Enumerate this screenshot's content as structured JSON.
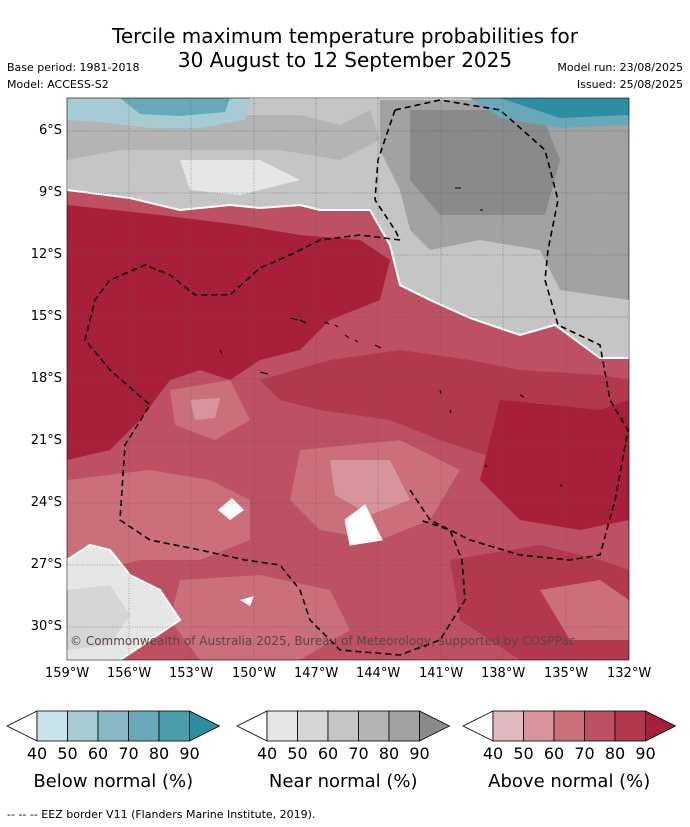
{
  "title_line1": "Tercile maximum temperature probabilities for",
  "title_line2": "30 August to 12 September 2025",
  "base_period": "Base period: 1981-2018",
  "model": "Model: ACCESS-S2",
  "model_run": "Model run: 23/08/2025",
  "issued": "Issued: 25/08/2025",
  "copyright": "© Commonwealth of Australia 2025, Bureau of Meteorology, supported by COSPPac",
  "footer": "--  --  -- EEZ border V11 (Flanders Marine Institute, 2019).",
  "lat_labels": [
    "6°S",
    "9°S",
    "12°S",
    "15°S",
    "18°S",
    "21°S",
    "24°S",
    "27°S",
    "30°S"
  ],
  "lon_labels": [
    "159°W",
    "156°W",
    "153°W",
    "150°W",
    "147°W",
    "144°W",
    "141°W",
    "138°W",
    "135°W",
    "132°W"
  ],
  "colorbars": [
    {
      "label": "Below normal (%)",
      "ticks": [
        "40",
        "50",
        "60",
        "70",
        "80",
        "90"
      ],
      "colors": [
        "#ffffff",
        "#c9e3ea",
        "#a6cbd3",
        "#87b8c4",
        "#67a9b8",
        "#4a9dad",
        "#2e8ea1"
      ]
    },
    {
      "label": "Near normal (%)",
      "ticks": [
        "40",
        "50",
        "60",
        "70",
        "80",
        "90"
      ],
      "colors": [
        "#ffffff",
        "#e6e6e6",
        "#d6d6d6",
        "#c5c5c5",
        "#b4b4b4",
        "#a2a2a2",
        "#8a8a8a"
      ]
    },
    {
      "label": "Above normal (%)",
      "ticks": [
        "40",
        "50",
        "60",
        "70",
        "80",
        "90"
      ],
      "colors": [
        "#ffffff",
        "#e2b8bf",
        "#d7949d",
        "#cb6f7b",
        "#bd5063",
        "#b2384d",
        "#a81f3a"
      ]
    }
  ],
  "map_colors": {
    "teal_dark": "#2e8ea1",
    "teal_mid": "#67a9b8",
    "teal_light": "#a6cbd3",
    "grey_dark": "#8a8a8a",
    "grey_mid": "#a2a2a2",
    "grey_light": "#c5c5c5",
    "grey_pale": "#d9d9d9",
    "red_dark": "#a81f3a",
    "red_mid": "#b2384d",
    "red_light": "#bd5063",
    "red_pale": "#cb6f7b",
    "red_faint": "#d7949d"
  }
}
